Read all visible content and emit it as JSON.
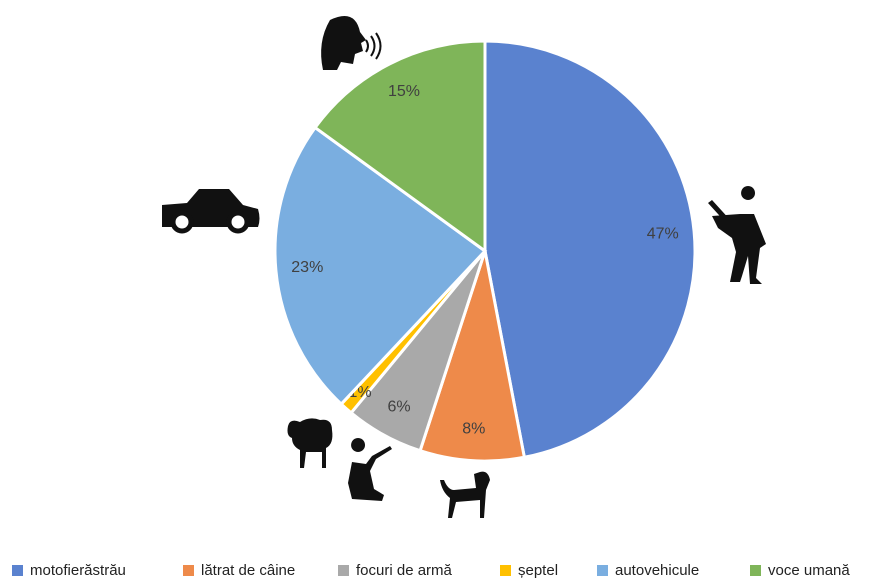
{
  "chart_data": {
    "type": "pie",
    "categories": [
      "motofierăstrău",
      "lătrat de câine",
      "focuri de armă",
      "șeptel",
      "autovehicule",
      "voce umană"
    ],
    "values": [
      47,
      8,
      6,
      1,
      23,
      15
    ],
    "value_labels": [
      "47%",
      "8%",
      "6%",
      "1%",
      "23%",
      "15%"
    ],
    "colors": [
      "#5a82cf",
      "#ee8a4a",
      "#a9a9a9",
      "#ffc000",
      "#7aaee0",
      "#7fb559"
    ],
    "legend": "bottom"
  }
}
